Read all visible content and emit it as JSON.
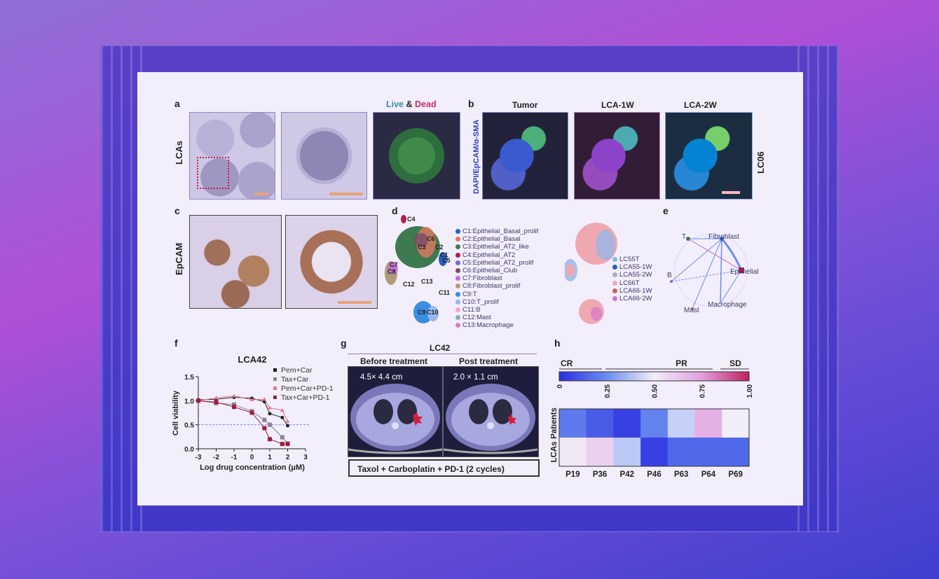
{
  "panel_labels": {
    "a": "a",
    "b": "b",
    "c": "c",
    "d": "d",
    "e": "e",
    "f": "f",
    "g": "g",
    "h": "h"
  },
  "a": {
    "row_label": "LCAs",
    "live": "Live",
    "amp": "&",
    "dead": "Dead"
  },
  "b": {
    "stain_label": "DAPI/EpCAM/α-SMA",
    "titles": [
      "Tumor",
      "LCA-1W",
      "LCA-2W"
    ],
    "sample": "LC06"
  },
  "c": {
    "row_label": "EpCAM"
  },
  "d": {
    "cluster_tags": [
      "C1",
      "C2",
      "C3",
      "C4",
      "C5",
      "C6",
      "C7",
      "C8",
      "C9",
      "C10",
      "C11",
      "C12",
      "C13"
    ],
    "legend": [
      {
        "label": "C1:Epithelial_Basal_prolif",
        "color": "#2a5fc0"
      },
      {
        "label": "C2:Epithelial_Basal",
        "color": "#e2785e"
      },
      {
        "label": "C3:Epithelial_AT2_like",
        "color": "#3e7a50"
      },
      {
        "label": "C4:Epithelial_AT2",
        "color": "#b0204a"
      },
      {
        "label": "C5:Epithelial_AT2_prolif",
        "color": "#7a6ad8"
      },
      {
        "label": "C6:Epithelial_Club",
        "color": "#7a4a6a"
      },
      {
        "label": "C7:Fibroblast",
        "color": "#c06ae0"
      },
      {
        "label": "C8:Fibroblast_prolif",
        "color": "#b09a78"
      },
      {
        "label": "C9:T",
        "color": "#3a8ee0"
      },
      {
        "label": "C10:T_prolif",
        "color": "#9ab8f0"
      },
      {
        "label": "C11:B",
        "color": "#f0a8c0"
      },
      {
        "label": "C12:Mast",
        "color": "#8ab0b0"
      },
      {
        "label": "C13:Macrophage",
        "color": "#d080c8"
      }
    ],
    "sample_legend": [
      {
        "label": "LC55T",
        "color": "#8ab8f0"
      },
      {
        "label": "LCA55-1W",
        "color": "#2a5fc0"
      },
      {
        "label": "LCA55-2W",
        "color": "#a8b0c0"
      },
      {
        "label": "LC66T",
        "color": "#f0a8b0"
      },
      {
        "label": "LCA66-1W",
        "color": "#d06060"
      },
      {
        "label": "LCA66-2W",
        "color": "#d070d0"
      }
    ]
  },
  "e": {
    "nodes": [
      "T",
      "Fibroblast",
      "Epithelial",
      "Macrophage",
      "Mast",
      "B"
    ]
  },
  "chart_data": [
    {
      "type": "line",
      "title": "LCA42",
      "xlabel": "Log drug concentration (μM)",
      "ylabel": "Cell viability",
      "xlim": [
        -3,
        3
      ],
      "ylim": [
        0,
        1.5
      ],
      "xticks": [
        "-3",
        "-2",
        "-1",
        "0",
        "1",
        "2",
        "3"
      ],
      "yticks": [
        "0.0",
        "0.5",
        "1.0",
        "1.5"
      ],
      "reference_line": 0.5,
      "legend_placement": "top-right",
      "grid": false,
      "x": [
        -3,
        -2,
        -1,
        0,
        0.7,
        1,
        1.7,
        2
      ],
      "series": [
        {
          "name": "Pem+Car",
          "color": "#222222",
          "marker": "circle",
          "values": [
            1.02,
            1.03,
            1.07,
            1.05,
            0.98,
            0.73,
            0.65,
            0.48
          ]
        },
        {
          "name": "Tax+Car",
          "color": "#8a8090",
          "marker": "square",
          "values": [
            1.0,
            0.95,
            0.92,
            0.78,
            0.6,
            0.5,
            0.24,
            0.11
          ]
        },
        {
          "name": "Pem+Car+PD-1",
          "color": "#e07a8a",
          "marker": "triangle",
          "values": [
            1.0,
            1.06,
            1.1,
            1.02,
            1.03,
            0.85,
            0.8,
            0.57
          ]
        },
        {
          "name": "Tax+Car+PD-1",
          "color": "#9a2040",
          "marker": "square",
          "values": [
            1.0,
            0.97,
            0.87,
            0.75,
            0.43,
            0.2,
            0.1,
            0.1
          ]
        }
      ]
    },
    {
      "type": "heatmap",
      "rows": [
        "Patients",
        "LCAs"
      ],
      "row_axis_label": "LCAs Patients",
      "categories": [
        "P19",
        "P36",
        "P42",
        "P46",
        "P63",
        "P64",
        "P69"
      ],
      "values": [
        [
          0.2,
          0.12,
          0.05,
          0.22,
          0.42,
          0.7,
          0.5
        ],
        [
          0.52,
          0.6,
          0.4,
          0.05,
          0.15,
          0.15,
          0.15
        ]
      ],
      "colorbar": {
        "ticks": [
          "0",
          "0.25",
          "0.50",
          "0.75",
          "1.00"
        ],
        "range": [
          0,
          1
        ],
        "colors": [
          "#2a2ee0",
          "#6a8ef0",
          "#f2eef8",
          "#e0a0e0",
          "#c02060"
        ]
      },
      "response_groups": [
        "CR",
        "PR",
        "SD"
      ]
    }
  ],
  "g": {
    "title": "LC42",
    "before": "Before treatment",
    "post": "Post treatment",
    "before_size": "4.5× 4.4 cm",
    "post_size": "2.0 × 1.1 cm",
    "regimen": "Taxol + Carboplatin + PD-1 (2 cycles)"
  }
}
